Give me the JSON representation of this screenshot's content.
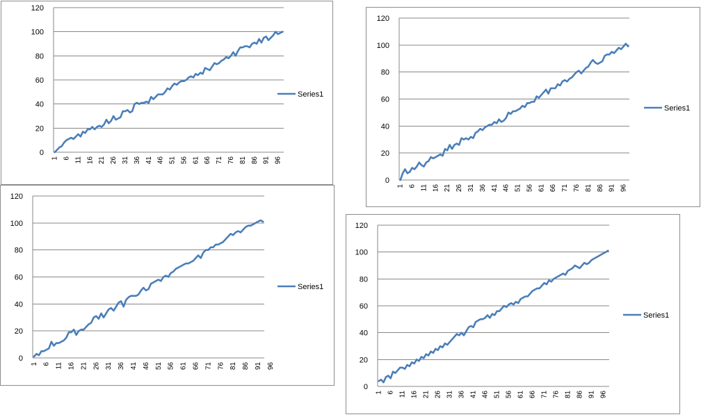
{
  "chart_data": [
    {
      "type": "line",
      "ylim": [
        0,
        120
      ],
      "yticks": [
        0,
        20,
        40,
        60,
        80,
        100,
        120
      ],
      "xtick_labels": [
        "1",
        "6",
        "11",
        "16",
        "21",
        "26",
        "31",
        "36",
        "41",
        "46",
        "51",
        "56",
        "61",
        "66",
        "71",
        "76",
        "81",
        "86",
        "91",
        "96"
      ],
      "grid": true,
      "legend_position": "right",
      "series": [
        {
          "name": "Series1",
          "color": "#4a7eb8",
          "values": [
            0,
            2,
            4,
            5,
            8,
            10,
            11,
            12,
            11,
            13,
            15,
            13,
            17,
            16,
            19,
            19,
            21,
            19,
            21,
            22,
            21,
            23,
            27,
            24,
            26,
            30,
            27,
            28,
            29,
            34,
            34,
            35,
            33,
            34,
            40,
            41,
            40,
            41,
            41,
            42,
            41,
            46,
            44,
            46,
            48,
            48,
            48,
            50,
            53,
            52,
            55,
            57,
            56,
            58,
            59,
            59,
            60,
            62,
            63,
            62,
            65,
            64,
            66,
            65,
            70,
            69,
            68,
            71,
            74,
            73,
            74,
            76,
            77,
            79,
            78,
            80,
            83,
            80,
            84,
            87,
            87,
            88,
            88,
            87,
            90,
            91,
            90,
            94,
            91,
            95,
            96,
            93,
            95,
            97,
            100,
            98,
            99,
            100
          ]
        }
      ]
    },
    {
      "type": "line",
      "ylim": [
        0,
        120
      ],
      "yticks": [
        0,
        20,
        40,
        60,
        80,
        100,
        120
      ],
      "xtick_labels": [
        "1",
        "6",
        "11",
        "16",
        "21",
        "26",
        "31",
        "36",
        "41",
        "46",
        "51",
        "56",
        "61",
        "66",
        "71",
        "76",
        "81",
        "86",
        "91",
        "96"
      ],
      "grid": true,
      "legend_position": "right",
      "series": [
        {
          "name": "Series1",
          "color": "#4a7eb8",
          "values": [
            0,
            5,
            8,
            5,
            6,
            9,
            8,
            10,
            13,
            11,
            10,
            13,
            14,
            17,
            16,
            17,
            18,
            19,
            18,
            23,
            22,
            26,
            23,
            26,
            27,
            26,
            31,
            30,
            31,
            30,
            32,
            31,
            35,
            36,
            38,
            37,
            39,
            40,
            41,
            41,
            43,
            42,
            45,
            43,
            44,
            46,
            50,
            49,
            51,
            51,
            52,
            53,
            55,
            54,
            57,
            57,
            58,
            58,
            62,
            61,
            63,
            65,
            67,
            64,
            68,
            68,
            68,
            71,
            70,
            73,
            74,
            73,
            75,
            76,
            78,
            80,
            81,
            79,
            81,
            83,
            84,
            87,
            89,
            87,
            86,
            87,
            88,
            92,
            93,
            93,
            95,
            94,
            96,
            98,
            97,
            99,
            101,
            99
          ]
        }
      ]
    },
    {
      "type": "line",
      "ylim": [
        0,
        120
      ],
      "yticks": [
        0,
        20,
        40,
        60,
        80,
        100,
        120
      ],
      "xtick_labels": [
        "1",
        "6",
        "11",
        "16",
        "21",
        "26",
        "31",
        "36",
        "41",
        "46",
        "51",
        "56",
        "61",
        "66",
        "71",
        "76",
        "81",
        "86",
        "91",
        "96"
      ],
      "grid": true,
      "legend_position": "right",
      "series": [
        {
          "name": "Series1",
          "color": "#4a7eb8",
          "values": [
            1,
            3,
            2,
            5,
            5,
            6,
            7,
            12,
            9,
            11,
            11,
            12,
            13,
            15,
            19,
            19,
            21,
            17,
            20,
            21,
            21,
            23,
            25,
            26,
            30,
            31,
            29,
            33,
            30,
            33,
            36,
            37,
            35,
            38,
            41,
            42,
            38,
            43,
            45,
            46,
            46,
            46,
            47,
            50,
            52,
            50,
            51,
            55,
            56,
            57,
            58,
            57,
            60,
            61,
            60,
            63,
            64,
            66,
            67,
            68,
            69,
            70,
            70,
            71,
            72,
            74,
            76,
            74,
            78,
            80,
            80,
            82,
            82,
            84,
            84,
            85,
            86,
            88,
            90,
            92,
            91,
            93,
            94,
            93,
            95,
            97,
            98,
            98,
            99,
            100,
            101,
            102,
            101
          ]
        }
      ]
    },
    {
      "type": "line",
      "ylim": [
        0,
        120
      ],
      "yticks": [
        0,
        20,
        40,
        60,
        80,
        100,
        120
      ],
      "xtick_labels": [
        "1",
        "6",
        "11",
        "16",
        "21",
        "26",
        "31",
        "36",
        "41",
        "46",
        "51",
        "56",
        "61",
        "66",
        "71",
        "76",
        "81",
        "86",
        "91",
        "96"
      ],
      "grid": true,
      "legend_position": "right",
      "series": [
        {
          "name": "Series1",
          "color": "#4a7eb8",
          "values": [
            4,
            5,
            3,
            7,
            8,
            6,
            11,
            10,
            12,
            14,
            14,
            13,
            16,
            15,
            18,
            17,
            20,
            19,
            22,
            21,
            24,
            23,
            26,
            25,
            28,
            27,
            30,
            29,
            32,
            31,
            33,
            35,
            37,
            39,
            38,
            40,
            38,
            41,
            44,
            45,
            44,
            48,
            49,
            50,
            50,
            51,
            53,
            51,
            54,
            53,
            56,
            56,
            58,
            60,
            59,
            61,
            62,
            61,
            63,
            62,
            65,
            66,
            67,
            67,
            69,
            71,
            72,
            73,
            73,
            75,
            77,
            76,
            79,
            78,
            80,
            81,
            82,
            83,
            84,
            83,
            86,
            87,
            88,
            90,
            89,
            88,
            90,
            92,
            91,
            92,
            94,
            95,
            96,
            97,
            98,
            99,
            100,
            101
          ]
        }
      ]
    }
  ]
}
